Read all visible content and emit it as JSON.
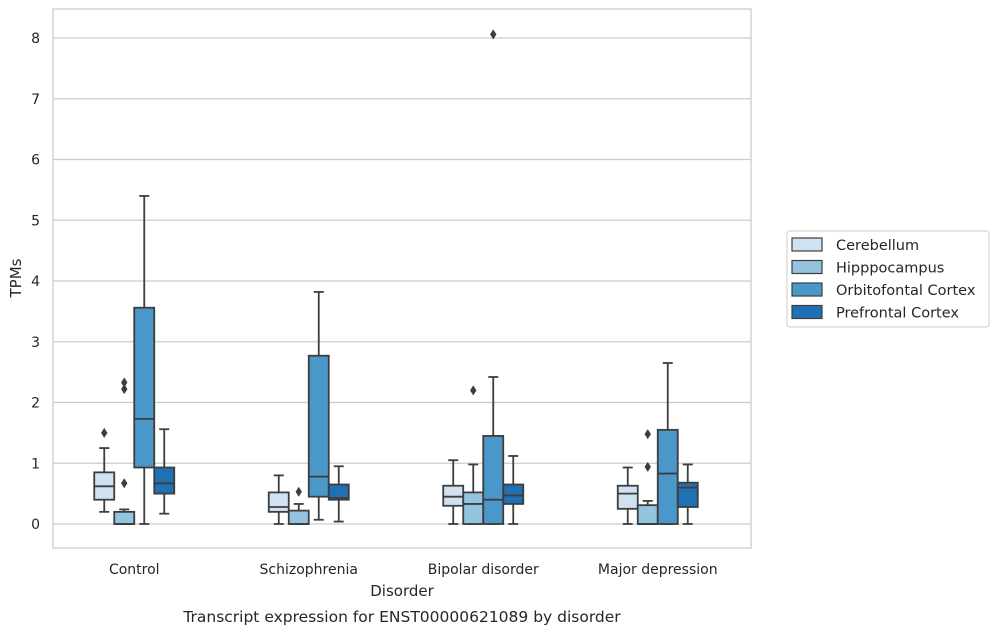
{
  "chart_data": {
    "type": "box",
    "title": "",
    "caption": "Transcript expression for ENST00000621089 by disorder",
    "xlabel": "Disorder",
    "ylabel": "TPMs",
    "ylim": [
      -0.4,
      8.5
    ],
    "yticks": [
      0,
      1,
      2,
      3,
      4,
      5,
      6,
      7,
      8
    ],
    "grid": "horizontal",
    "legend_position": "right",
    "categories": [
      "Control",
      "Schizophrenia",
      "Bipolar disorder",
      "Major depression"
    ],
    "series": [
      {
        "name": "Cerebellum",
        "color": "#d0e1f2",
        "boxes": [
          {
            "whislo": 0.2,
            "q1": 0.4,
            "med": 0.62,
            "q3": 0.85,
            "whishi": 1.25,
            "fliers": [
              1.5
            ]
          },
          {
            "whislo": 0.0,
            "q1": 0.2,
            "med": 0.28,
            "q3": 0.52,
            "whishi": 0.8,
            "fliers": []
          },
          {
            "whislo": 0.0,
            "q1": 0.3,
            "med": 0.45,
            "q3": 0.63,
            "whishi": 1.05,
            "fliers": []
          },
          {
            "whislo": 0.0,
            "q1": 0.25,
            "med": 0.5,
            "q3": 0.63,
            "whishi": 0.93,
            "fliers": []
          }
        ]
      },
      {
        "name": "Hipppocampus",
        "color": "#94c4df",
        "boxes": [
          {
            "whislo": 0.0,
            "q1": 0.0,
            "med": 0.0,
            "q3": 0.2,
            "whishi": 0.24,
            "fliers": [
              0.67,
              2.22,
              2.33
            ]
          },
          {
            "whislo": 0.0,
            "q1": 0.0,
            "med": 0.0,
            "q3": 0.22,
            "whishi": 0.33,
            "fliers": [
              0.53
            ]
          },
          {
            "whislo": 0.0,
            "q1": 0.0,
            "med": 0.33,
            "q3": 0.52,
            "whishi": 0.98,
            "fliers": [
              2.2
            ]
          },
          {
            "whislo": 0.0,
            "q1": 0.0,
            "med": 0.0,
            "q3": 0.31,
            "whishi": 0.38,
            "fliers": [
              0.94,
              1.48
            ]
          }
        ]
      },
      {
        "name": "Orbitofontal Cortex",
        "color": "#4a98c9",
        "boxes": [
          {
            "whislo": 0.0,
            "q1": 0.93,
            "med": 1.73,
            "q3": 3.56,
            "whishi": 5.4,
            "fliers": []
          },
          {
            "whislo": 0.07,
            "q1": 0.45,
            "med": 0.78,
            "q3": 2.77,
            "whishi": 3.82,
            "fliers": []
          },
          {
            "whislo": 0.0,
            "q1": 0.0,
            "med": 0.4,
            "q3": 1.45,
            "whishi": 2.42,
            "fliers": [
              8.06
            ]
          },
          {
            "whislo": 0.0,
            "q1": 0.0,
            "med": 0.83,
            "q3": 1.55,
            "whishi": 2.65,
            "fliers": []
          }
        ]
      },
      {
        "name": "Prefrontal Cortex",
        "color": "#2070b4",
        "boxes": [
          {
            "whislo": 0.17,
            "q1": 0.5,
            "med": 0.67,
            "q3": 0.93,
            "whishi": 1.56,
            "fliers": []
          },
          {
            "whislo": 0.04,
            "q1": 0.4,
            "med": 0.43,
            "q3": 0.65,
            "whishi": 0.95,
            "fliers": []
          },
          {
            "whislo": 0.0,
            "q1": 0.33,
            "med": 0.47,
            "q3": 0.65,
            "whishi": 1.12,
            "fliers": []
          },
          {
            "whislo": 0.0,
            "q1": 0.28,
            "med": 0.6,
            "q3": 0.68,
            "whishi": 0.98,
            "fliers": []
          }
        ]
      }
    ]
  }
}
